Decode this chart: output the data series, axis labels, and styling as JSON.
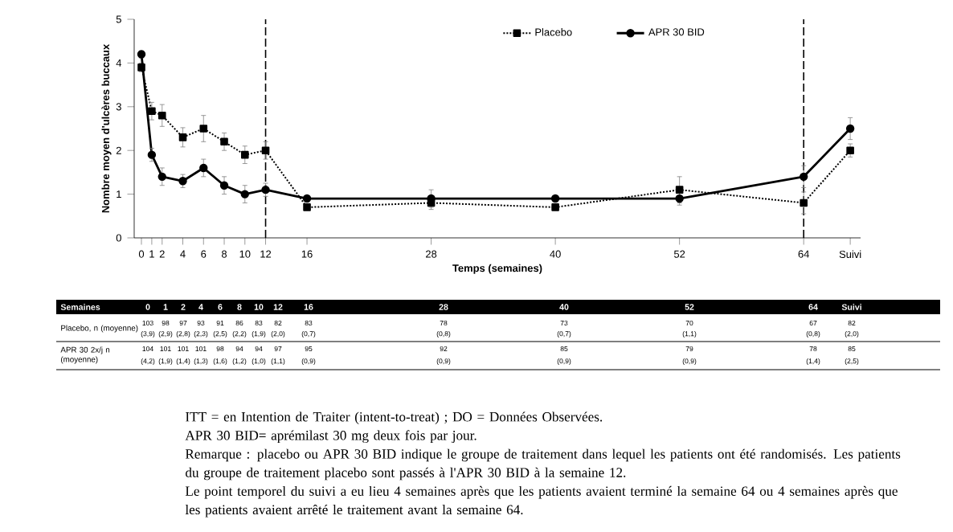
{
  "chart_data": {
    "type": "line",
    "xlabel": "Temps (semaines)",
    "ylabel": "Nombre moyen d'ulcères buccaux",
    "x": [
      0,
      1,
      2,
      4,
      6,
      8,
      10,
      12,
      16,
      28,
      40,
      52,
      64,
      68.5
    ],
    "xlim": [
      -0.7,
      69.5
    ],
    "ylim": [
      0,
      5
    ],
    "yticks": [
      0,
      1,
      2,
      3,
      4,
      5
    ],
    "xticks": [
      0,
      1,
      2,
      4,
      6,
      8,
      10,
      12,
      16,
      28,
      40,
      52,
      64,
      {
        "value": 68.5,
        "label": "Suivi"
      }
    ],
    "series": [
      {
        "name": "Placebo",
        "color": "#000000",
        "marker": "square",
        "line_style": "dotted",
        "values": [
          3.9,
          2.9,
          2.8,
          2.3,
          2.5,
          2.2,
          1.9,
          2.0,
          0.7,
          0.8,
          0.7,
          1.1,
          0.8,
          2.0
        ],
        "errors": [
          0.1,
          0.2,
          0.25,
          0.22,
          0.3,
          0.2,
          0.2,
          0.2,
          0.06,
          0.15,
          0.06,
          0.3,
          0.25,
          0.15
        ]
      },
      {
        "name": "APR 30 BID",
        "color": "#000000",
        "marker": "circle",
        "line_style": "solid",
        "values": [
          4.2,
          1.9,
          1.4,
          1.3,
          1.6,
          1.2,
          1.0,
          1.1,
          0.9,
          0.9,
          0.9,
          0.9,
          1.4,
          2.5
        ],
        "errors": [
          0.08,
          0.15,
          0.2,
          0.15,
          0.2,
          0.2,
          0.2,
          0.15,
          0.05,
          0.2,
          0.05,
          0.15,
          0.25,
          0.25
        ]
      }
    ],
    "ref_lines": [
      {
        "axis": "x",
        "value": 12,
        "line_style": "dashed"
      },
      {
        "axis": "x",
        "value": 64,
        "line_style": "dashed"
      }
    ],
    "legend": "top",
    "annotations": [
      "ITT = en Intention de Traiter (intent-to-treat) ; DO = Données Observées.",
      "APR 30 BID= aprémilast 30 mg deux fois par jour.",
      "Remarque : placebo ou APR 30 BID indique le groupe de traitement dans lequel les patients ont été randomisés. Les patients du groupe de traitement placebo sont passés à l'APR 30 BID à la semaine 12.",
      "Le point temporel du suivi a eu lieu 4 semaines après que les patients avaient terminé la semaine 64 ou 4 semaines après que les patients avaient arrêté le traitement avant la semaine 64.",
      "Semaines",
      "0",
      "1",
      "2",
      "4",
      "6",
      "8",
      "10",
      "12",
      "16",
      "28",
      "40",
      "52",
      "64",
      "Suivi",
      "Placebo, n (moyenne)",
      "APR 30 2x/j n (moyenne)",
      "103",
      "98",
      "97",
      "93",
      "91",
      "86",
      "83",
      "82",
      "83",
      "78",
      "73",
      "70",
      "67",
      "82",
      "104",
      "101",
      "101",
      "101",
      "98",
      "94",
      "94",
      "97",
      "95",
      "92",
      "85",
      "79",
      "78",
      "85",
      "(3,9)",
      "(2,9)",
      "(2,8)",
      "(2,3)",
      "(2,5)",
      "(2,2)",
      "(1,9)",
      "(2,0)",
      "(0,7)",
      "(0,8)",
      "(0,7)",
      "(1,1)",
      "(0,8)",
      "(2,0)",
      "(4,2)",
      "(1,9)",
      "(1,4)",
      "(1,3)",
      "(1,6)",
      "(1,2)",
      "(1,0)",
      "(1,1)",
      "(0,9)",
      "(0,9)",
      "(0,9)",
      "(0,9)",
      "(1,4)",
      "(2,5)"
    ]
  }
}
